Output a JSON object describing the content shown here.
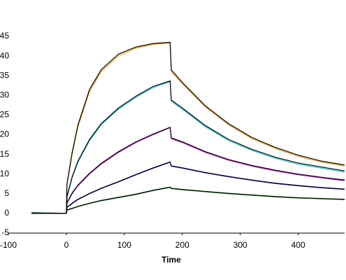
{
  "chart_data": {
    "type": "line",
    "xlabel": "Time",
    "x": [
      -60,
      0,
      1,
      10,
      20,
      40,
      60,
      90,
      120,
      150,
      179,
      181,
      200,
      240,
      280,
      320,
      360,
      400,
      440,
      480
    ],
    "series": [
      {
        "color": "#e8a62a",
        "values": [
          0.2,
          0,
          7,
          15,
          22,
          31,
          36,
          40,
          42,
          43,
          43.3,
          36,
          33,
          27,
          22.5,
          19,
          16.5,
          14.5,
          13,
          12
        ]
      },
      {
        "color": "#2cc4d2",
        "values": [
          0.2,
          0,
          4,
          9,
          13,
          18.5,
          22.5,
          26.5,
          29.5,
          32,
          33.5,
          28.5,
          26.5,
          22,
          18.5,
          16,
          14,
          12.5,
          11.5,
          10.5
        ]
      },
      {
        "color": "#c22cc4",
        "values": [
          0.2,
          0,
          2.5,
          5,
          7,
          10,
          12.5,
          15.5,
          18,
          20,
          21.8,
          19,
          18,
          15.5,
          13.5,
          12,
          10.8,
          9.8,
          9,
          8.3
        ]
      },
      {
        "color": "#2a2ac8",
        "values": [
          0.2,
          0,
          1.5,
          2.5,
          3.5,
          5,
          6.3,
          8,
          9.8,
          11.5,
          13,
          12,
          11.5,
          10.3,
          9.3,
          8.4,
          7.6,
          7,
          6.5,
          6.1
        ]
      },
      {
        "color": "#2a8a2a",
        "values": [
          0.2,
          0,
          0.8,
          1.2,
          1.7,
          2.5,
          3.2,
          4,
          4.8,
          5.8,
          6.6,
          6.3,
          6,
          5.5,
          5,
          4.6,
          4.2,
          3.9,
          3.7,
          3.5
        ]
      },
      {
        "color": "#000000",
        "values": [
          0,
          0,
          7.5,
          15.5,
          22.5,
          31.5,
          36.5,
          40.5,
          42.3,
          43.2,
          43.5,
          36.5,
          33.3,
          27.3,
          22.8,
          19.3,
          16.8,
          14.8,
          13.3,
          12.3
        ]
      },
      {
        "color": "#000000",
        "values": [
          0,
          0,
          4.3,
          9.3,
          13.3,
          18.8,
          22.8,
          26.8,
          29.8,
          32.3,
          33.7,
          28.8,
          26.8,
          22.3,
          18.8,
          16.3,
          14.3,
          12.8,
          11.8,
          10.8
        ]
      },
      {
        "color": "#000000",
        "values": [
          0,
          0,
          2.7,
          5.2,
          7.2,
          10.2,
          12.7,
          15.7,
          18.2,
          20.2,
          21.9,
          19.2,
          18.2,
          15.7,
          13.7,
          12.2,
          11,
          10,
          9.2,
          8.5
        ]
      },
      {
        "color": "#000000",
        "values": [
          0,
          0,
          1.6,
          2.6,
          3.6,
          5.1,
          6.4,
          8.1,
          9.9,
          11.6,
          13.1,
          12.1,
          11.6,
          10.4,
          9.4,
          8.5,
          7.7,
          7.1,
          6.6,
          6.2
        ]
      },
      {
        "color": "#000000",
        "values": [
          0,
          0,
          0.9,
          1.3,
          1.8,
          2.6,
          3.3,
          4.1,
          4.9,
          5.9,
          6.7,
          6.4,
          6.1,
          5.6,
          5.1,
          4.7,
          4.3,
          4,
          3.8,
          3.6
        ]
      }
    ],
    "xlim": [
      -100,
      480
    ],
    "xticks": [
      -100,
      0,
      100,
      200,
      300,
      400
    ],
    "ylim": [
      -5,
      45
    ],
    "yticks": [
      -5,
      0,
      5,
      10,
      15,
      20,
      25,
      30,
      35,
      40,
      45
    ]
  }
}
